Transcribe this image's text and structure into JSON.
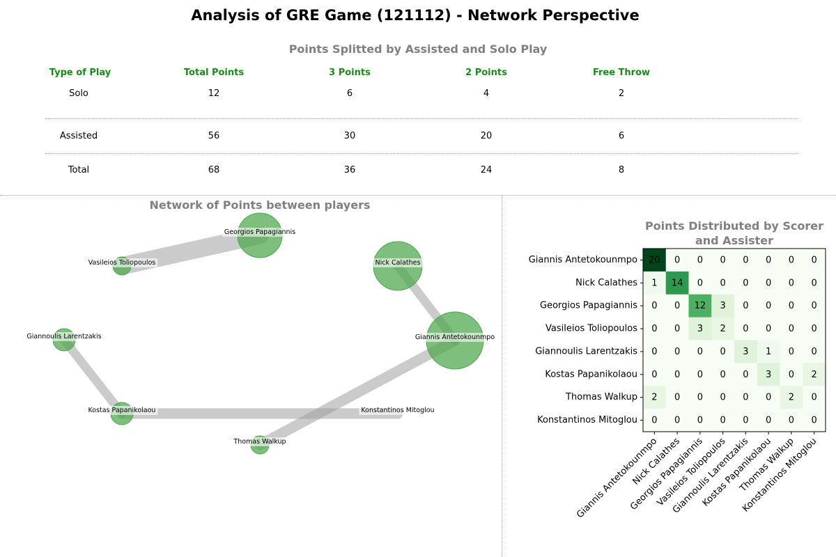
{
  "title": "Analysis of GRE Game (121112) - Network Perspective",
  "table": {
    "title": "Points Splitted by Assisted and Solo Play",
    "headers": [
      "Type of Play",
      "Total Points",
      "3 Points",
      "2 Points",
      "Free Throw"
    ],
    "rows": [
      [
        "Solo",
        "12",
        "6",
        "4",
        "2"
      ],
      [
        "Assisted",
        "56",
        "30",
        "20",
        "6"
      ],
      [
        "Total",
        "68",
        "36",
        "24",
        "8"
      ]
    ]
  },
  "network": {
    "title": "Network of Points between players",
    "node_color": "#4ca64c",
    "edge_color": "#a0a0a0",
    "nodes": [
      {
        "name": "Georgios Papagiannis",
        "points": 12
      },
      {
        "name": "Vasileios Toliopoulos",
        "points": 2
      },
      {
        "name": "Nick Calathes",
        "points": 14
      },
      {
        "name": "Giannoulis Larentzakis",
        "points": 3
      },
      {
        "name": "Giannis Antetokounmpo",
        "points": 20
      },
      {
        "name": "Kostas Papanikolaou",
        "points": 3
      },
      {
        "name": "Konstantinos Mitoglou",
        "points": 0
      },
      {
        "name": "Thomas Walkup",
        "points": 2
      }
    ],
    "edges": [
      {
        "source": "Vasileios Toliopoulos",
        "target": "Georgios Papagiannis",
        "value": 6
      },
      {
        "source": "Nick Calathes",
        "target": "Giannis Antetokounmpo",
        "value": 1
      },
      {
        "source": "Giannoulis Larentzakis",
        "target": "Kostas Papanikolaou",
        "value": 1
      },
      {
        "source": "Kostas Papanikolaou",
        "target": "Konstantinos Mitoglou",
        "value": 2
      },
      {
        "source": "Thomas Walkup",
        "target": "Giannis Antetokounmpo",
        "value": 2
      }
    ]
  },
  "chart_data": {
    "type": "heatmap",
    "title": "Points Distributed by Scorer and Assister",
    "colormap": "Greens",
    "rows": [
      "Giannis Antetokounmpo",
      "Nick Calathes",
      "Georgios Papagiannis",
      "Vasileios Toliopoulos",
      "Giannoulis Larentzakis",
      "Kostas Papanikolaou",
      "Thomas Walkup",
      "Konstantinos Mitoglou"
    ],
    "columns": [
      "Giannis Antetokounmpo",
      "Nick Calathes",
      "Georgios Papagiannis",
      "Vasileios Toliopoulos",
      "Giannoulis Larentzakis",
      "Kostas Papanikolaou",
      "Thomas Walkup",
      "Konstantinos Mitoglou"
    ],
    "values": [
      [
        20,
        0,
        0,
        0,
        0,
        0,
        0,
        0
      ],
      [
        1,
        14,
        0,
        0,
        0,
        0,
        0,
        0
      ],
      [
        0,
        0,
        12,
        3,
        0,
        0,
        0,
        0
      ],
      [
        0,
        0,
        3,
        2,
        0,
        0,
        0,
        0
      ],
      [
        0,
        0,
        0,
        0,
        3,
        1,
        0,
        0
      ],
      [
        0,
        0,
        0,
        0,
        0,
        3,
        0,
        2
      ],
      [
        2,
        0,
        0,
        0,
        0,
        0,
        2,
        0
      ],
      [
        0,
        0,
        0,
        0,
        0,
        0,
        0,
        0
      ]
    ]
  }
}
